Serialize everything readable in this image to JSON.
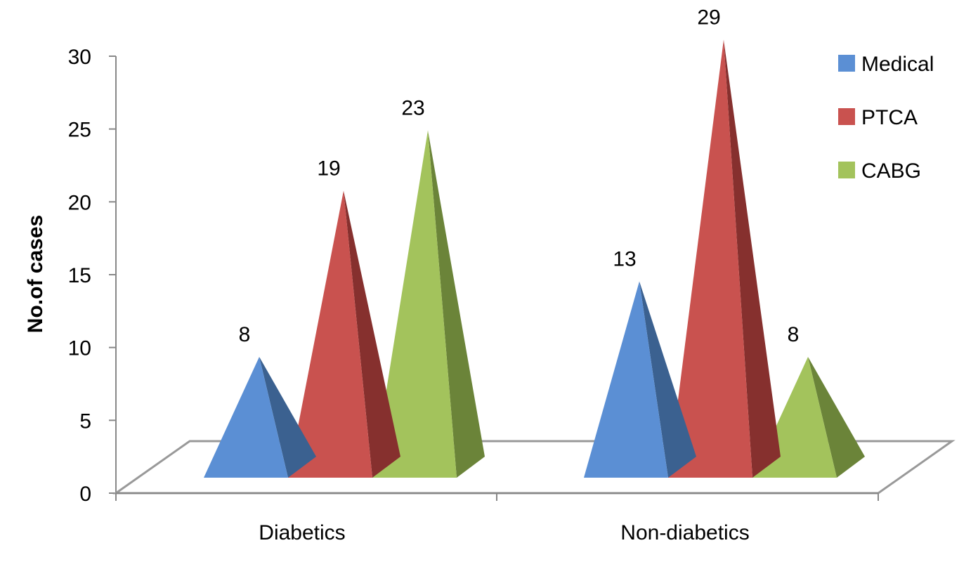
{
  "chart_data": {
    "type": "bar",
    "style": "3d-pyramid",
    "title": "",
    "xlabel": "",
    "ylabel": "No.of cases",
    "ylim": [
      0,
      30
    ],
    "yticks": [
      0,
      5,
      10,
      15,
      20,
      25,
      30
    ],
    "categories": [
      "Diabetics",
      "Non-diabetics"
    ],
    "series": [
      {
        "name": "Medical",
        "values": [
          8,
          13
        ],
        "color": "#5b8fd4",
        "shade": "#3b6190"
      },
      {
        "name": "PTCA",
        "values": [
          19,
          29
        ],
        "color": "#c9524f",
        "shade": "#86302e"
      },
      {
        "name": "CABG",
        "values": [
          23,
          8
        ],
        "color": "#a3c35c",
        "shade": "#6b8439"
      }
    ],
    "legend": "right",
    "grid": false
  }
}
